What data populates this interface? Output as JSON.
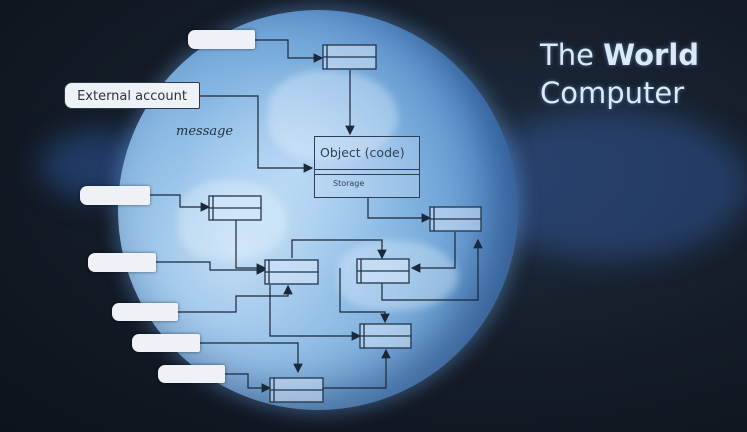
{
  "slide": {
    "title_line1_prefix": "The",
    "title_line1_emphasis": "World",
    "title_line2": "Computer"
  },
  "diagram": {
    "external_account_label": "External account",
    "message_label": "message",
    "object_title": "Object (code)",
    "object_storage_label": "Storage"
  },
  "colors": {
    "title_text": "#dbe9fa",
    "globe_base": "#6fa3d6",
    "box_stroke": "#22344a",
    "arrow": "#1b2838"
  }
}
